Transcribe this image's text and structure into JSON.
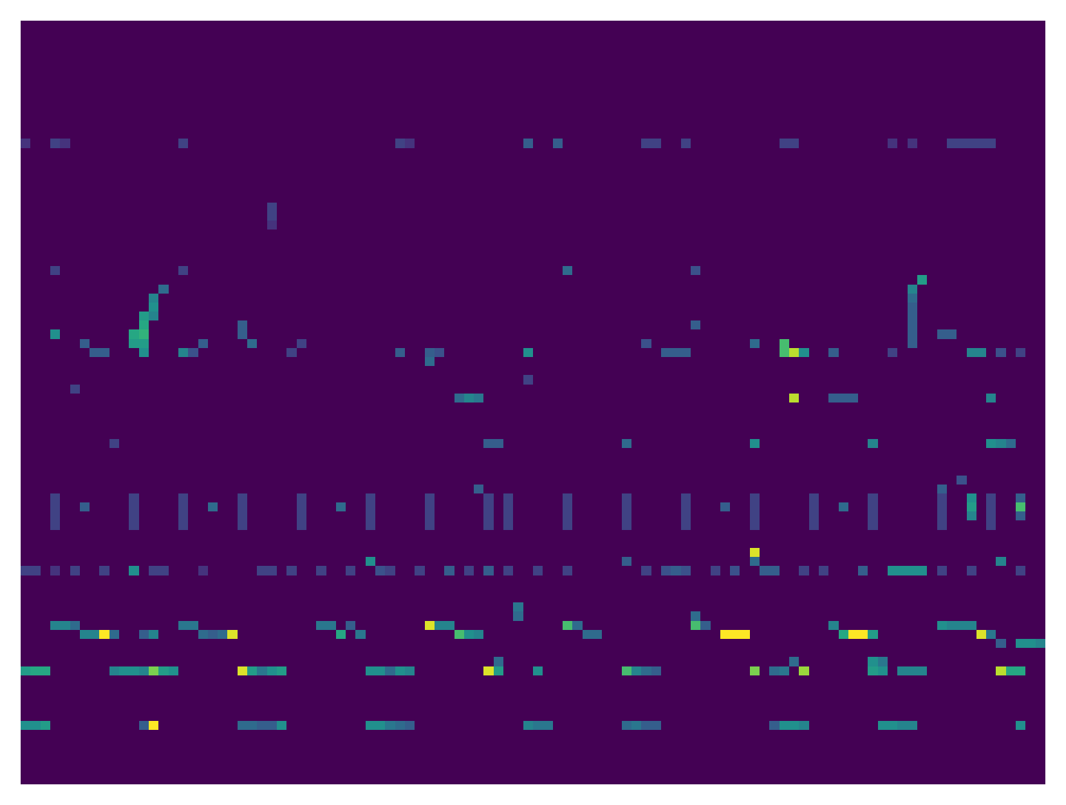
{
  "chart_data": {
    "type": "heatmap",
    "xlim": [
      0,
      104
    ],
    "ylim": [
      84,
      0
    ],
    "zlim": [
      0,
      1
    ],
    "tick_labels": false,
    "cells": [
      [
        0,
        77,
        0.5
      ],
      [
        1,
        77,
        0.5
      ],
      [
        2,
        77,
        0.55
      ],
      [
        12,
        77,
        0.3
      ],
      [
        13,
        77,
        1
      ],
      [
        22,
        77,
        0.35
      ],
      [
        23,
        77,
        0.35
      ],
      [
        24,
        77,
        0.3
      ],
      [
        25,
        77,
        0.3
      ],
      [
        26,
        77,
        0.5
      ],
      [
        35,
        77,
        0.5
      ],
      [
        36,
        77,
        0.5
      ],
      [
        37,
        77,
        0.4
      ],
      [
        38,
        77,
        0.35
      ],
      [
        39,
        77,
        0.3
      ],
      [
        51,
        77,
        0.45
      ],
      [
        52,
        77,
        0.4
      ],
      [
        53,
        77,
        0.4
      ],
      [
        61,
        77,
        0.35
      ],
      [
        62,
        77,
        0.4
      ],
      [
        63,
        77,
        0.3
      ],
      [
        64,
        77,
        0.3
      ],
      [
        76,
        77,
        0.3
      ],
      [
        77,
        77,
        0.5
      ],
      [
        78,
        77,
        0.5
      ],
      [
        79,
        77,
        0.45
      ],
      [
        87,
        77,
        0.5
      ],
      [
        88,
        77,
        0.5
      ],
      [
        89,
        77,
        0.45
      ],
      [
        90,
        77,
        0.45
      ],
      [
        101,
        77,
        0.5
      ],
      [
        0,
        71,
        0.55
      ],
      [
        1,
        71,
        0.6
      ],
      [
        2,
        71,
        0.6
      ],
      [
        9,
        71,
        0.45
      ],
      [
        10,
        71,
        0.5
      ],
      [
        11,
        71,
        0.5
      ],
      [
        12,
        71,
        0.45
      ],
      [
        13,
        71,
        0.8
      ],
      [
        14,
        71,
        0.55
      ],
      [
        15,
        71,
        0.5
      ],
      [
        22,
        71,
        0.95
      ],
      [
        23,
        71,
        0.55
      ],
      [
        24,
        71,
        0.4
      ],
      [
        25,
        71,
        0.5
      ],
      [
        26,
        71,
        0.55
      ],
      [
        35,
        71,
        0.5
      ],
      [
        36,
        71,
        0.5
      ],
      [
        37,
        71,
        0.35
      ],
      [
        38,
        71,
        0.5
      ],
      [
        39,
        71,
        0.45
      ],
      [
        47,
        71,
        0.95
      ],
      [
        48,
        71,
        0.55
      ],
      [
        52,
        71,
        0.5
      ],
      [
        61,
        71,
        0.7
      ],
      [
        62,
        71,
        0.45
      ],
      [
        63,
        71,
        0.35
      ],
      [
        64,
        71,
        0.3
      ],
      [
        74,
        71,
        0.8
      ],
      [
        76,
        71,
        0.35
      ],
      [
        77,
        71,
        0.4
      ],
      [
        79,
        71,
        0.85
      ],
      [
        86,
        71,
        0.55
      ],
      [
        87,
        71,
        0.5
      ],
      [
        89,
        71,
        0.45
      ],
      [
        90,
        71,
        0.45
      ],
      [
        91,
        71,
        0.45
      ],
      [
        99,
        71,
        0.9
      ],
      [
        100,
        71,
        0.6
      ],
      [
        101,
        71,
        0.6
      ],
      [
        86,
        70,
        0.5
      ],
      [
        87,
        70,
        0.4
      ],
      [
        48,
        70,
        0.35
      ],
      [
        78,
        70,
        0.35
      ],
      [
        3,
        66,
        0.45
      ],
      [
        4,
        66,
        0.45
      ],
      [
        5,
        66,
        0.35
      ],
      [
        6,
        67,
        0.45
      ],
      [
        7,
        67,
        0.45
      ],
      [
        8,
        67,
        1
      ],
      [
        9,
        67,
        0.35
      ],
      [
        12,
        67,
        0.3
      ],
      [
        13,
        67,
        0.45
      ],
      [
        16,
        66,
        0.4
      ],
      [
        17,
        66,
        0.4
      ],
      [
        18,
        67,
        0.35
      ],
      [
        19,
        67,
        0.3
      ],
      [
        20,
        67,
        0.35
      ],
      [
        21,
        67,
        0.95
      ],
      [
        30,
        66,
        0.4
      ],
      [
        31,
        66,
        0.4
      ],
      [
        32,
        67,
        0.6
      ],
      [
        33,
        66,
        0.3
      ],
      [
        34,
        67,
        0.4
      ],
      [
        41,
        66,
        0.95
      ],
      [
        42,
        66,
        0.45
      ],
      [
        43,
        66,
        0.45
      ],
      [
        44,
        67,
        0.7
      ],
      [
        45,
        67,
        0.5
      ],
      [
        46,
        67,
        0.45
      ],
      [
        55,
        66,
        0.7
      ],
      [
        56,
        66,
        0.35
      ],
      [
        57,
        67,
        0.35
      ],
      [
        58,
        67,
        0.35
      ],
      [
        68,
        66,
        0.7
      ],
      [
        69,
        66,
        0.3
      ],
      [
        71,
        67,
        1
      ],
      [
        72,
        67,
        1
      ],
      [
        73,
        67,
        1
      ],
      [
        82,
        66,
        0.45
      ],
      [
        83,
        67,
        0.6
      ],
      [
        84,
        67,
        1
      ],
      [
        85,
        67,
        1
      ],
      [
        86,
        67,
        0.55
      ],
      [
        93,
        66,
        0.5
      ],
      [
        94,
        66,
        0.45
      ],
      [
        95,
        66,
        0.45
      ],
      [
        96,
        66,
        0.45
      ],
      [
        97,
        67,
        0.95
      ],
      [
        98,
        67,
        0.4
      ],
      [
        101,
        68,
        0.5
      ],
      [
        102,
        68,
        0.5
      ],
      [
        103,
        68,
        0.45
      ],
      [
        99,
        68,
        0.3
      ],
      [
        50,
        64,
        0.4
      ],
      [
        50,
        65,
        0.35
      ],
      [
        68,
        65,
        0.35
      ],
      [
        0,
        60,
        0.2
      ],
      [
        1,
        60,
        0.2
      ],
      [
        3,
        60,
        0.15
      ],
      [
        5,
        60,
        0.2
      ],
      [
        8,
        60,
        0.2
      ],
      [
        11,
        60,
        0.5
      ],
      [
        13,
        60,
        0.2
      ],
      [
        14,
        60,
        0.2
      ],
      [
        18,
        60,
        0.15
      ],
      [
        24,
        60,
        0.2
      ],
      [
        25,
        60,
        0.2
      ],
      [
        27,
        60,
        0.2
      ],
      [
        30,
        60,
        0.2
      ],
      [
        33,
        60,
        0.2
      ],
      [
        35,
        59,
        0.5
      ],
      [
        36,
        60,
        0.25
      ],
      [
        37,
        60,
        0.2
      ],
      [
        40,
        60,
        0.2
      ],
      [
        43,
        60,
        0.3
      ],
      [
        45,
        60,
        0.2
      ],
      [
        47,
        60,
        0.3
      ],
      [
        49,
        60,
        0.2
      ],
      [
        52,
        60,
        0.2
      ],
      [
        55,
        60,
        0.2
      ],
      [
        61,
        59,
        0.3
      ],
      [
        63,
        60,
        0.2
      ],
      [
        65,
        60,
        0.25
      ],
      [
        66,
        60,
        0.3
      ],
      [
        67,
        60,
        0.25
      ],
      [
        70,
        60,
        0.2
      ],
      [
        72,
        60,
        0.25
      ],
      [
        74,
        58,
        0.95
      ],
      [
        74,
        59,
        0.35
      ],
      [
        75,
        60,
        0.3
      ],
      [
        76,
        60,
        0.3
      ],
      [
        79,
        60,
        0.2
      ],
      [
        81,
        60,
        0.2
      ],
      [
        85,
        60,
        0.3
      ],
      [
        88,
        60,
        0.5
      ],
      [
        89,
        60,
        0.5
      ],
      [
        90,
        60,
        0.5
      ],
      [
        91,
        60,
        0.5
      ],
      [
        93,
        60,
        0.2
      ],
      [
        96,
        60,
        0.2
      ],
      [
        99,
        59,
        0.45
      ],
      [
        101,
        60,
        0.2
      ],
      [
        3,
        52,
        0.2
      ],
      [
        3,
        53,
        0.2
      ],
      [
        3,
        54,
        0.2
      ],
      [
        3,
        55,
        0.2
      ],
      [
        11,
        52,
        0.2
      ],
      [
        11,
        53,
        0.2
      ],
      [
        11,
        54,
        0.2
      ],
      [
        11,
        55,
        0.2
      ],
      [
        16,
        52,
        0.2
      ],
      [
        16,
        53,
        0.2
      ],
      [
        16,
        54,
        0.2
      ],
      [
        16,
        55,
        0.2
      ],
      [
        22,
        52,
        0.2
      ],
      [
        22,
        53,
        0.2
      ],
      [
        22,
        54,
        0.2
      ],
      [
        22,
        55,
        0.2
      ],
      [
        28,
        52,
        0.2
      ],
      [
        28,
        53,
        0.2
      ],
      [
        28,
        54,
        0.2
      ],
      [
        28,
        55,
        0.2
      ],
      [
        35,
        52,
        0.2
      ],
      [
        35,
        53,
        0.2
      ],
      [
        35,
        54,
        0.2
      ],
      [
        35,
        55,
        0.2
      ],
      [
        41,
        52,
        0.2
      ],
      [
        41,
        53,
        0.2
      ],
      [
        41,
        54,
        0.2
      ],
      [
        41,
        55,
        0.2
      ],
      [
        47,
        52,
        0.2
      ],
      [
        47,
        53,
        0.2
      ],
      [
        47,
        54,
        0.2
      ],
      [
        47,
        55,
        0.2
      ],
      [
        49,
        52,
        0.2
      ],
      [
        49,
        53,
        0.2
      ],
      [
        49,
        54,
        0.2
      ],
      [
        49,
        55,
        0.2
      ],
      [
        55,
        52,
        0.2
      ],
      [
        55,
        53,
        0.2
      ],
      [
        55,
        54,
        0.2
      ],
      [
        55,
        55,
        0.2
      ],
      [
        61,
        52,
        0.2
      ],
      [
        61,
        53,
        0.2
      ],
      [
        61,
        54,
        0.2
      ],
      [
        61,
        55,
        0.2
      ],
      [
        67,
        52,
        0.2
      ],
      [
        67,
        53,
        0.2
      ],
      [
        67,
        54,
        0.2
      ],
      [
        67,
        55,
        0.2
      ],
      [
        74,
        52,
        0.2
      ],
      [
        74,
        53,
        0.2
      ],
      [
        74,
        54,
        0.2
      ],
      [
        74,
        55,
        0.2
      ],
      [
        80,
        52,
        0.2
      ],
      [
        80,
        53,
        0.2
      ],
      [
        80,
        54,
        0.2
      ],
      [
        80,
        55,
        0.2
      ],
      [
        86,
        52,
        0.2
      ],
      [
        86,
        53,
        0.2
      ],
      [
        86,
        54,
        0.2
      ],
      [
        86,
        55,
        0.2
      ],
      [
        93,
        52,
        0.2
      ],
      [
        93,
        53,
        0.2
      ],
      [
        93,
        54,
        0.2
      ],
      [
        93,
        55,
        0.2
      ],
      [
        98,
        52,
        0.2
      ],
      [
        98,
        53,
        0.2
      ],
      [
        98,
        54,
        0.2
      ],
      [
        98,
        55,
        0.2
      ],
      [
        6,
        53,
        0.3
      ],
      [
        19,
        53,
        0.35
      ],
      [
        32,
        53,
        0.35
      ],
      [
        46,
        51,
        0.3
      ],
      [
        71,
        53,
        0.3
      ],
      [
        83,
        53,
        0.35
      ],
      [
        96,
        52,
        0.5
      ],
      [
        96,
        53,
        0.55
      ],
      [
        96,
        54,
        0.45
      ],
      [
        101,
        52,
        0.3
      ],
      [
        101,
        53,
        0.7
      ],
      [
        101,
        54,
        0.3
      ],
      [
        93,
        51,
        0.3
      ],
      [
        95,
        50,
        0.25
      ],
      [
        74,
        46,
        0.5
      ],
      [
        61,
        46,
        0.35
      ],
      [
        86,
        46,
        0.45
      ],
      [
        98,
        46,
        0.5
      ],
      [
        99,
        46,
        0.45
      ],
      [
        100,
        46,
        0.35
      ],
      [
        47,
        46,
        0.3
      ],
      [
        48,
        46,
        0.3
      ],
      [
        9,
        46,
        0.2
      ],
      [
        78,
        41,
        0.9
      ],
      [
        44,
        41,
        0.35
      ],
      [
        45,
        41,
        0.45
      ],
      [
        46,
        41,
        0.4
      ],
      [
        82,
        41,
        0.3
      ],
      [
        83,
        41,
        0.3
      ],
      [
        84,
        41,
        0.3
      ],
      [
        98,
        41,
        0.45
      ],
      [
        5,
        40,
        0.2
      ],
      [
        51,
        39,
        0.2
      ],
      [
        3,
        34,
        0.5
      ],
      [
        6,
        35,
        0.3
      ],
      [
        7,
        36,
        0.3
      ],
      [
        8,
        36,
        0.3
      ],
      [
        11,
        34,
        0.6
      ],
      [
        11,
        35,
        0.55
      ],
      [
        12,
        32,
        0.55
      ],
      [
        12,
        33,
        0.6
      ],
      [
        12,
        34,
        0.65
      ],
      [
        12,
        35,
        0.55
      ],
      [
        12,
        36,
        0.5
      ],
      [
        13,
        30,
        0.45
      ],
      [
        13,
        31,
        0.5
      ],
      [
        13,
        32,
        0.45
      ],
      [
        14,
        29,
        0.35
      ],
      [
        16,
        36,
        0.45
      ],
      [
        17,
        36,
        0.25
      ],
      [
        18,
        35,
        0.3
      ],
      [
        22,
        33,
        0.3
      ],
      [
        22,
        34,
        0.3
      ],
      [
        23,
        35,
        0.35
      ],
      [
        27,
        36,
        0.2
      ],
      [
        28,
        35,
        0.2
      ],
      [
        38,
        36,
        0.3
      ],
      [
        41,
        36,
        0.3
      ],
      [
        41,
        37,
        0.35
      ],
      [
        42,
        36,
        0.25
      ],
      [
        51,
        36,
        0.5
      ],
      [
        63,
        35,
        0.25
      ],
      [
        65,
        36,
        0.3
      ],
      [
        66,
        36,
        0.3
      ],
      [
        67,
        36,
        0.3
      ],
      [
        68,
        33,
        0.3
      ],
      [
        74,
        35,
        0.35
      ],
      [
        77,
        35,
        0.7
      ],
      [
        77,
        36,
        0.7
      ],
      [
        78,
        36,
        0.9
      ],
      [
        79,
        36,
        0.5
      ],
      [
        82,
        36,
        0.3
      ],
      [
        88,
        36,
        0.2
      ],
      [
        90,
        29,
        0.45
      ],
      [
        90,
        30,
        0.35
      ],
      [
        90,
        31,
        0.3
      ],
      [
        90,
        32,
        0.3
      ],
      [
        90,
        33,
        0.3
      ],
      [
        90,
        34,
        0.3
      ],
      [
        90,
        35,
        0.3
      ],
      [
        91,
        28,
        0.55
      ],
      [
        93,
        34,
        0.3
      ],
      [
        94,
        34,
        0.3
      ],
      [
        96,
        36,
        0.45
      ],
      [
        97,
        36,
        0.45
      ],
      [
        99,
        36,
        0.25
      ],
      [
        101,
        36,
        0.2
      ],
      [
        55,
        27,
        0.35
      ],
      [
        68,
        27,
        0.25
      ],
      [
        3,
        27,
        0.2
      ],
      [
        16,
        27,
        0.2
      ],
      [
        0,
        13,
        0.15
      ],
      [
        3,
        13,
        0.2
      ],
      [
        4,
        13,
        0.15
      ],
      [
        16,
        13,
        0.2
      ],
      [
        38,
        13,
        0.2
      ],
      [
        39,
        13,
        0.15
      ],
      [
        51,
        13,
        0.3
      ],
      [
        54,
        13,
        0.3
      ],
      [
        63,
        13,
        0.2
      ],
      [
        64,
        13,
        0.2
      ],
      [
        67,
        13,
        0.2
      ],
      [
        77,
        13,
        0.2
      ],
      [
        78,
        13,
        0.2
      ],
      [
        88,
        13,
        0.15
      ],
      [
        90,
        13,
        0.15
      ],
      [
        94,
        13,
        0.2
      ],
      [
        95,
        13,
        0.2
      ],
      [
        96,
        13,
        0.2
      ],
      [
        97,
        13,
        0.2
      ],
      [
        98,
        13,
        0.2
      ],
      [
        25,
        20,
        0.2
      ],
      [
        25,
        21,
        0.2
      ],
      [
        25,
        22,
        0.15
      ]
    ]
  }
}
